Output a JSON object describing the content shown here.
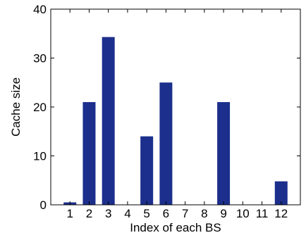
{
  "chart_data": {
    "type": "bar",
    "title": "",
    "xlabel": "Index of each BS",
    "ylabel": "Cache size",
    "categories": [
      "1",
      "2",
      "3",
      "4",
      "5",
      "6",
      "7",
      "8",
      "9",
      "10",
      "11",
      "12"
    ],
    "values": [
      0.5,
      21,
      34.3,
      0,
      14,
      25,
      0,
      0,
      21,
      0,
      0,
      4.8
    ],
    "ylim": [
      0,
      40
    ],
    "yticks": [
      "0",
      "10",
      "20",
      "30",
      "40"
    ],
    "grid": false,
    "legend": "none",
    "bar_color": "#1c2f8c"
  }
}
